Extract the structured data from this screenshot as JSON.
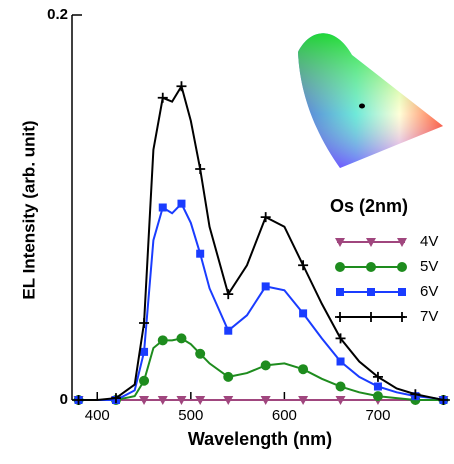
{
  "chart_data": {
    "type": "line",
    "x_label": "Wavelength (nm)",
    "y_label": "EL Intensity (arb. unit)",
    "legend_title": "Os (2nm)",
    "x": [
      380,
      400,
      420,
      440,
      450,
      460,
      470,
      480,
      490,
      500,
      510,
      520,
      540,
      560,
      580,
      600,
      620,
      640,
      660,
      680,
      700,
      720,
      740,
      760,
      770
    ],
    "xlim": [
      373,
      777
    ],
    "xticks": [
      400,
      500,
      600,
      700
    ],
    "ylim": [
      0,
      0.2
    ],
    "yticks": [
      0,
      0.2
    ],
    "legend_position": "right",
    "series": [
      {
        "name": "4V",
        "color": "#a0467e",
        "marker": "triangle",
        "values": [
          0,
          0,
          0,
          0,
          0,
          0,
          0,
          0,
          0,
          0,
          0,
          0,
          0,
          0,
          0,
          0,
          0,
          0,
          0,
          0,
          0,
          0,
          0,
          0,
          0
        ]
      },
      {
        "name": "5V",
        "color": "#1e8c1e",
        "marker": "circle",
        "values": [
          0,
          0,
          0,
          0.002,
          0.01,
          0.027,
          0.031,
          0.031,
          0.032,
          0.029,
          0.024,
          0.019,
          0.012,
          0.014,
          0.018,
          0.019,
          0.016,
          0.011,
          0.007,
          0.004,
          0.002,
          0.001,
          0,
          0,
          0
        ]
      },
      {
        "name": "6V",
        "color": "#1a3cff",
        "marker": "square",
        "values": [
          0,
          0,
          0,
          0.005,
          0.025,
          0.083,
          0.1,
          0.097,
          0.102,
          0.092,
          0.076,
          0.058,
          0.036,
          0.044,
          0.059,
          0.057,
          0.045,
          0.032,
          0.02,
          0.012,
          0.007,
          0.004,
          0.002,
          0.001,
          0
        ]
      },
      {
        "name": "7V",
        "color": "#000000",
        "marker": "plus",
        "values": [
          0,
          0,
          0.001,
          0.008,
          0.04,
          0.13,
          0.157,
          0.155,
          0.163,
          0.145,
          0.12,
          0.09,
          0.055,
          0.07,
          0.095,
          0.09,
          0.07,
          0.05,
          0.032,
          0.02,
          0.012,
          0.006,
          0.003,
          0.001,
          0
        ]
      }
    ]
  }
}
